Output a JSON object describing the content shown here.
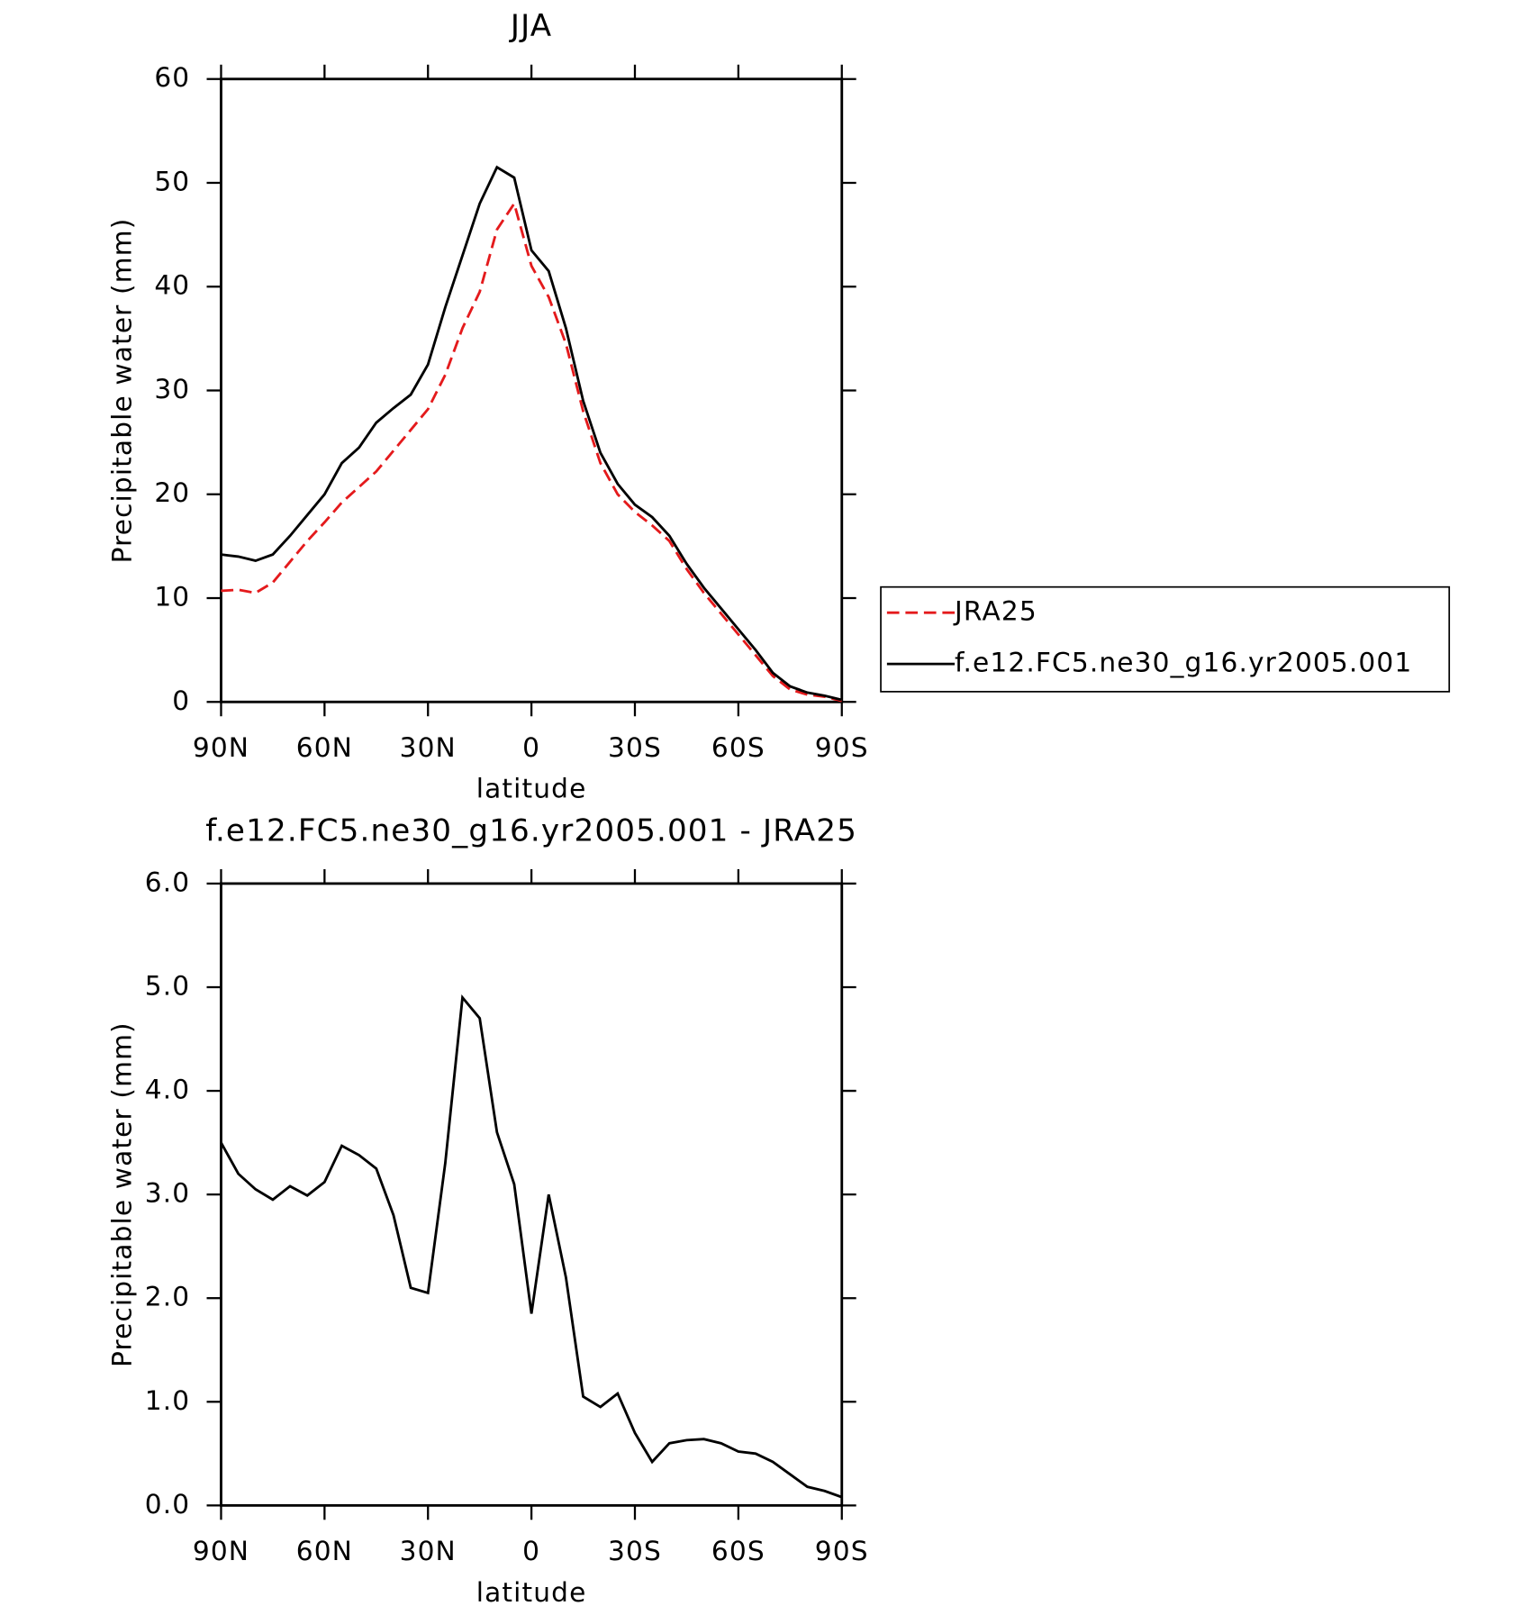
{
  "chart_data": [
    {
      "type": "line",
      "title": "JJA",
      "xlabel": "latitude",
      "ylabel": "Precipitable water (mm)",
      "x": [
        90,
        85,
        80,
        75,
        70,
        65,
        60,
        55,
        50,
        45,
        40,
        35,
        30,
        25,
        20,
        15,
        10,
        5,
        0,
        -5,
        -10,
        -15,
        -20,
        -25,
        -30,
        -35,
        -40,
        -45,
        -50,
        -55,
        -60,
        -65,
        -70,
        -75,
        -80,
        -85,
        -90
      ],
      "xlim": [
        90,
        -90
      ],
      "xticks": [
        {
          "value": 90,
          "label": "90N"
        },
        {
          "value": 60,
          "label": "60N"
        },
        {
          "value": 30,
          "label": "30N"
        },
        0,
        {
          "value": -30,
          "label": "30S"
        },
        {
          "value": -60,
          "label": "60S"
        },
        {
          "value": -90,
          "label": "90S"
        }
      ],
      "ylim": [
        0,
        60
      ],
      "yticks": [
        0,
        10,
        20,
        30,
        40,
        50,
        60
      ],
      "legend": "right",
      "series": [
        {
          "name": "JRA25",
          "color": "#e41a1c",
          "dash": true,
          "values": [
            10.7,
            10.8,
            10.5,
            11.5,
            13.5,
            15.5,
            17.3,
            19.2,
            20.7,
            22.2,
            24.2,
            26.2,
            28.2,
            31.5,
            36,
            39.5,
            45.5,
            48,
            42,
            39,
            34.5,
            28,
            23,
            20,
            18.3,
            17,
            15.5,
            12.8,
            10.5,
            8.5,
            6.5,
            4.5,
            2.5,
            1.2,
            0.7,
            0.5,
            0.1
          ]
        },
        {
          "name": "f.e12.FC5.ne30_g16.yr2005.001",
          "color": "#000000",
          "dash": false,
          "values": [
            14.2,
            14.0,
            13.6,
            14.2,
            16,
            18,
            20,
            23,
            24.5,
            26.9,
            28.3,
            29.6,
            32.5,
            38,
            43,
            48,
            51.5,
            50.5,
            43.5,
            41.5,
            36,
            29,
            24,
            21,
            19,
            17.8,
            16,
            13.3,
            11,
            9,
            7,
            5,
            2.8,
            1.5,
            0.9,
            0.6,
            0.2
          ]
        }
      ]
    },
    {
      "type": "line",
      "title": "f.e12.FC5.ne30_g16.yr2005.001 - JRA25",
      "xlabel": "latitude",
      "ylabel": "Precipitable water (mm)",
      "x": [
        90,
        85,
        80,
        75,
        70,
        65,
        60,
        55,
        50,
        45,
        40,
        35,
        30,
        25,
        20,
        15,
        10,
        5,
        0,
        -5,
        -10,
        -15,
        -20,
        -25,
        -30,
        -35,
        -40,
        -45,
        -50,
        -55,
        -60,
        -65,
        -70,
        -75,
        -80,
        -85,
        -90
      ],
      "xlim": [
        90,
        -90
      ],
      "xticks": [
        {
          "value": 90,
          "label": "90N"
        },
        {
          "value": 60,
          "label": "60N"
        },
        {
          "value": 30,
          "label": "30N"
        },
        0,
        {
          "value": -30,
          "label": "30S"
        },
        {
          "value": -60,
          "label": "60S"
        },
        {
          "value": -90,
          "label": "90S"
        }
      ],
      "ylim": [
        0,
        6
      ],
      "yticks": [
        {
          "value": 0,
          "label": "0.0"
        },
        {
          "value": 1,
          "label": "1.0"
        },
        {
          "value": 2,
          "label": "2.0"
        },
        {
          "value": 3,
          "label": "3.0"
        },
        {
          "value": 4,
          "label": "4.0"
        },
        {
          "value": 5,
          "label": "5.0"
        },
        {
          "value": 6,
          "label": "6.0"
        }
      ],
      "series": [
        {
          "color": "#000000",
          "dash": false,
          "values": [
            3.5,
            3.2,
            3.05,
            2.95,
            3.08,
            2.99,
            3.12,
            3.47,
            3.38,
            3.25,
            2.8,
            2.1,
            2.05,
            3.3,
            4.9,
            4.7,
            3.6,
            3.1,
            1.85,
            3.0,
            2.2,
            1.05,
            0.95,
            1.08,
            0.7,
            0.42,
            0.6,
            0.63,
            0.64,
            0.6,
            0.52,
            0.5,
            0.42,
            0.3,
            0.18,
            0.14,
            0.08
          ]
        }
      ]
    }
  ]
}
